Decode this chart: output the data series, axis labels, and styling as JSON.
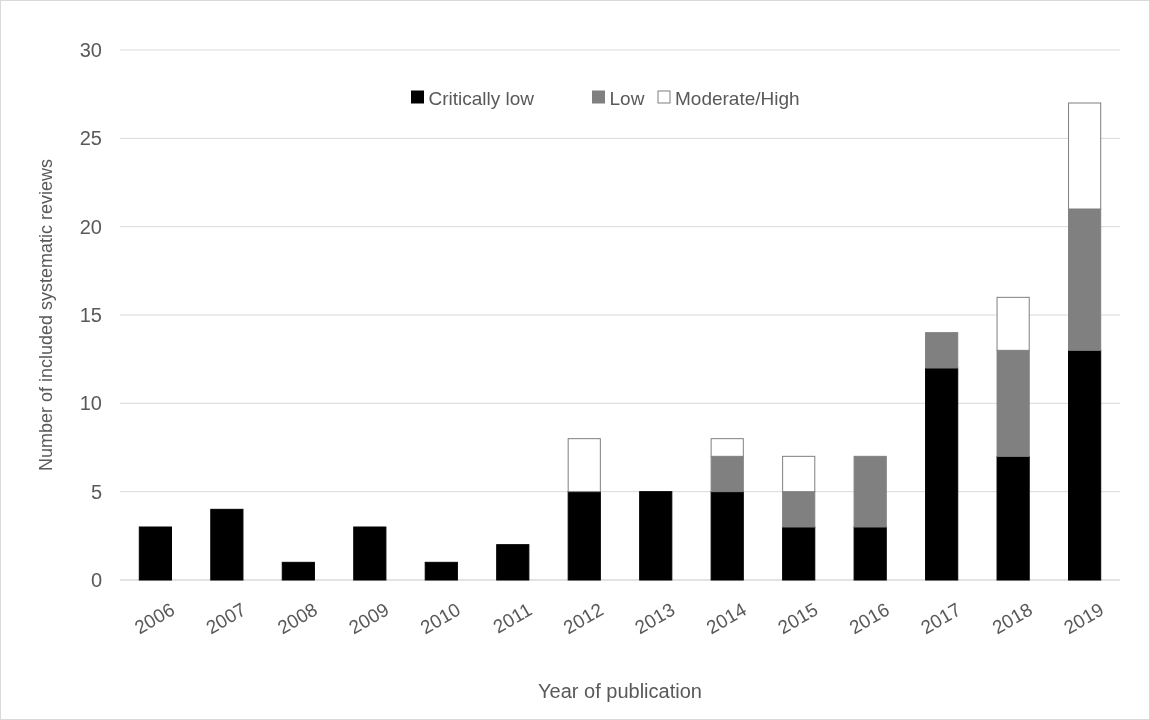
{
  "chart_data": {
    "type": "bar",
    "stacked": true,
    "xlabel": "Year of publication",
    "ylabel": "Number of included systematic reviews",
    "categories": [
      "2006",
      "2007",
      "2008",
      "2009",
      "2010",
      "2011",
      "2012",
      "2013",
      "2014",
      "2015",
      "2016",
      "2017",
      "2018",
      "2019"
    ],
    "series": [
      {
        "name": "Critically low",
        "color": "#000000",
        "values": [
          3,
          4,
          1,
          3,
          1,
          2,
          5,
          5,
          5,
          3,
          3,
          12,
          7,
          13
        ]
      },
      {
        "name": "Low",
        "color": "#808080",
        "values": [
          0,
          0,
          0,
          0,
          0,
          0,
          0,
          0,
          2,
          2,
          4,
          2,
          6,
          8
        ]
      },
      {
        "name": "Moderate/High",
        "color": "#ffffff",
        "values": [
          0,
          0,
          0,
          0,
          0,
          0,
          3,
          0,
          1,
          2,
          0,
          0,
          3,
          6
        ]
      }
    ],
    "ylim": [
      0,
      30
    ],
    "yticks": [
      0,
      5,
      10,
      15,
      20,
      25,
      30
    ],
    "grid": "y",
    "legend": "top"
  }
}
